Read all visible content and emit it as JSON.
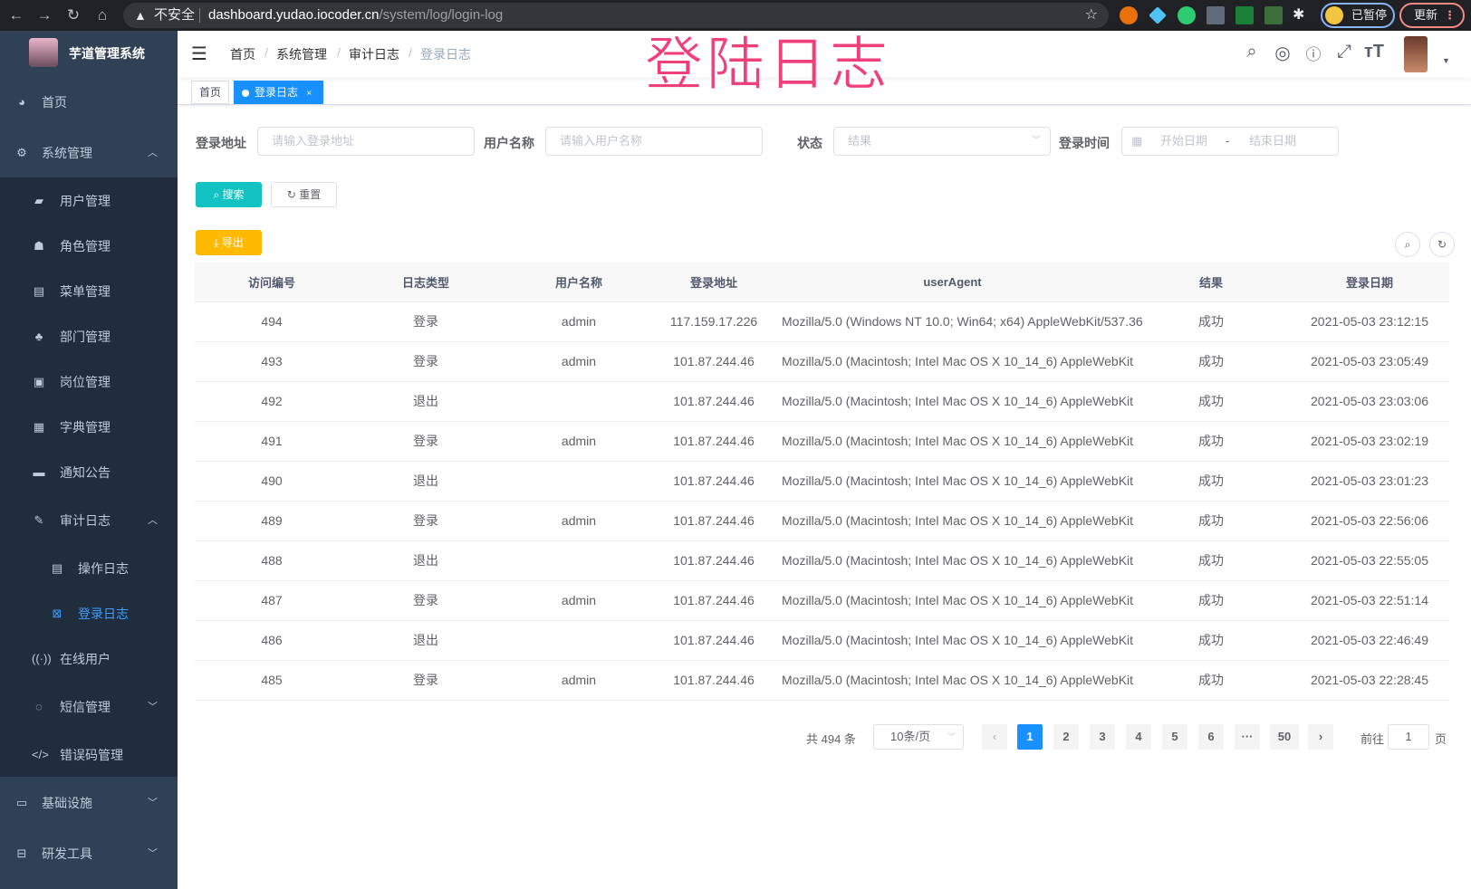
{
  "browser": {
    "insecure_label": "不安全",
    "url_host": "dashboard.yudao.iocoder.cn",
    "url_path": "/system/log/login-log",
    "paused_label": "已暂停",
    "update_label": "更新"
  },
  "watermark": "登陆日志",
  "sidebar": {
    "app_title": "芋道管理系统",
    "items": [
      {
        "label": "首页",
        "icon": "dashboard-icon"
      },
      {
        "label": "系统管理",
        "icon": "gear-icon"
      },
      {
        "label": "用户管理",
        "icon": "user-icon"
      },
      {
        "label": "角色管理",
        "icon": "peoples-icon"
      },
      {
        "label": "菜单管理",
        "icon": "tree-table-icon"
      },
      {
        "label": "部门管理",
        "icon": "tree-icon"
      },
      {
        "label": "岗位管理",
        "icon": "post-icon"
      },
      {
        "label": "字典管理",
        "icon": "dict-icon"
      },
      {
        "label": "通知公告",
        "icon": "message-icon"
      },
      {
        "label": "审计日志",
        "icon": "log-icon"
      },
      {
        "label": "操作日志",
        "icon": "form-icon"
      },
      {
        "label": "登录日志",
        "icon": "logininfor-icon"
      },
      {
        "label": "在线用户",
        "icon": "online-icon"
      },
      {
        "label": "短信管理",
        "icon": "validCode-icon"
      },
      {
        "label": "错误码管理",
        "icon": "code-icon"
      },
      {
        "label": "基础设施",
        "icon": "monitor-icon"
      },
      {
        "label": "研发工具",
        "icon": "tool-icon"
      }
    ]
  },
  "breadcrumb": [
    "首页",
    "系统管理",
    "审计日志",
    "登录日志"
  ],
  "tags": [
    "首页",
    "登录日志"
  ],
  "filters": {
    "address_label": "登录地址",
    "address_placeholder": "请输入登录地址",
    "username_label": "用户名称",
    "username_placeholder": "请输入用户名称",
    "status_label": "状态",
    "status_placeholder": "结果",
    "time_label": "登录时间",
    "start_placeholder": "开始日期",
    "range_sep": "-",
    "end_placeholder": "结束日期",
    "search_label": "搜索",
    "reset_label": "重置",
    "export_label": "导出"
  },
  "colors": {
    "sidebar": "#304156",
    "submenu": "#1f2d3d",
    "primary": "#1890ff",
    "search": "#13c2c2",
    "export": "#ffba00",
    "watermark": "#f0407a"
  },
  "table": {
    "headers": [
      "访问编号",
      "日志类型",
      "用户名称",
      "登录地址",
      "userAgent",
      "结果",
      "登录日期"
    ],
    "rows": [
      [
        "494",
        "登录",
        "admin",
        "117.159.17.226",
        "Mozilla/5.0 (Windows NT 10.0; Win64; x64) AppleWebKit/537.36",
        "成功",
        "2021-05-03 23:12:15"
      ],
      [
        "493",
        "登录",
        "admin",
        "101.87.244.46",
        "Mozilla/5.0 (Macintosh; Intel Mac OS X 10_14_6) AppleWebKit",
        "成功",
        "2021-05-03 23:05:49"
      ],
      [
        "492",
        "退出",
        "",
        "101.87.244.46",
        "Mozilla/5.0 (Macintosh; Intel Mac OS X 10_14_6) AppleWebKit",
        "成功",
        "2021-05-03 23:03:06"
      ],
      [
        "491",
        "登录",
        "admin",
        "101.87.244.46",
        "Mozilla/5.0 (Macintosh; Intel Mac OS X 10_14_6) AppleWebKit",
        "成功",
        "2021-05-03 23:02:19"
      ],
      [
        "490",
        "退出",
        "",
        "101.87.244.46",
        "Mozilla/5.0 (Macintosh; Intel Mac OS X 10_14_6) AppleWebKit",
        "成功",
        "2021-05-03 23:01:23"
      ],
      [
        "489",
        "登录",
        "admin",
        "101.87.244.46",
        "Mozilla/5.0 (Macintosh; Intel Mac OS X 10_14_6) AppleWebKit",
        "成功",
        "2021-05-03 22:56:06"
      ],
      [
        "488",
        "退出",
        "",
        "101.87.244.46",
        "Mozilla/5.0 (Macintosh; Intel Mac OS X 10_14_6) AppleWebKit",
        "成功",
        "2021-05-03 22:55:05"
      ],
      [
        "487",
        "登录",
        "admin",
        "101.87.244.46",
        "Mozilla/5.0 (Macintosh; Intel Mac OS X 10_14_6) AppleWebKit",
        "成功",
        "2021-05-03 22:51:14"
      ],
      [
        "486",
        "退出",
        "",
        "101.87.244.46",
        "Mozilla/5.0 (Macintosh; Intel Mac OS X 10_14_6) AppleWebKit",
        "成功",
        "2021-05-03 22:46:49"
      ],
      [
        "485",
        "登录",
        "admin",
        "101.87.244.46",
        "Mozilla/5.0 (Macintosh; Intel Mac OS X 10_14_6) AppleWebKit",
        "成功",
        "2021-05-03 22:28:45"
      ]
    ]
  },
  "pagination": {
    "total_text": "共 494 条",
    "page_size": "10条/页",
    "pages": [
      "1",
      "2",
      "3",
      "4",
      "5",
      "6",
      "···",
      "50"
    ],
    "current": "1",
    "goto_label": "前往",
    "goto_value": "1",
    "goto_suffix": "页"
  }
}
